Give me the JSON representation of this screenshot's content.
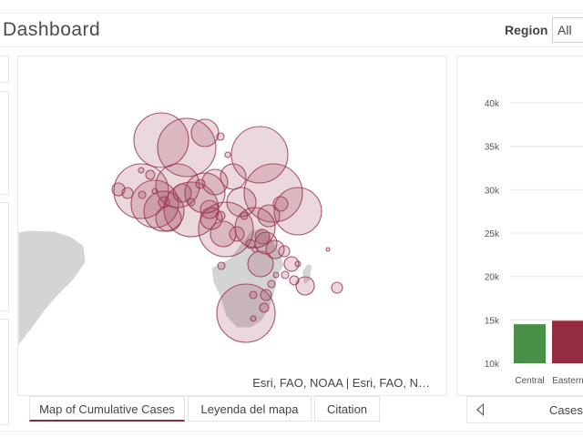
{
  "header": {
    "title": "Dashboard",
    "region_label": "Region",
    "region_value": "All"
  },
  "map": {
    "attribution": "Esri, FAO, NOAA | Esri, FAO, N…",
    "bubble_color": "#9b3a52",
    "land_color": "#d4d4d4"
  },
  "tabs": [
    {
      "label": "Map of Cumulative Cases",
      "active": true
    },
    {
      "label": "Leyenda del mapa",
      "active": false
    },
    {
      "label": "Citation",
      "active": false
    }
  ],
  "chart_footer": {
    "label": "Cases",
    "nav_icon": "chevron-left-icon"
  },
  "chart_data": {
    "type": "bar",
    "categories": [
      "Central",
      "Eastern"
    ],
    "values": [
      14500,
      14900
    ],
    "colors": [
      "#4a8f47",
      "#962c42"
    ],
    "ylim": [
      10000,
      42000
    ],
    "yticks": [
      10000,
      15000,
      20000,
      25000,
      30000,
      35000,
      40000
    ],
    "ytick_labels": [
      "10k",
      "15k",
      "20k",
      "25k",
      "30k",
      "35k",
      "40k"
    ],
    "grid": true
  }
}
